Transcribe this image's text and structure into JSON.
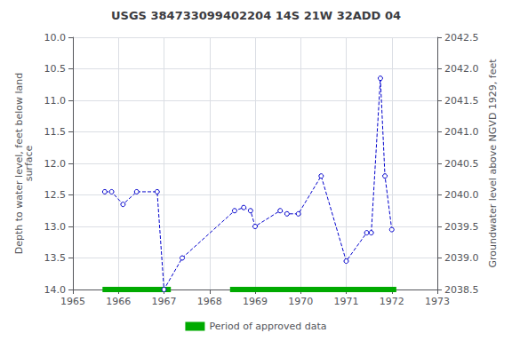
{
  "chart_data": {
    "type": "line",
    "title": "USGS 384733099402204 14S 21W 32ADD 04",
    "ylabel": "Depth to water level, feet below land\nsurface",
    "y2label": "Groundwater level above NGVD 1929, feet",
    "x": [
      1965.7,
      1965.85,
      1966.1,
      1966.4,
      1966.85,
      1967.0,
      1967.4,
      1968.55,
      1968.75,
      1968.9,
      1969.0,
      1969.55,
      1969.7,
      1969.95,
      1970.45,
      1971.0,
      1971.45,
      1971.55,
      1971.75,
      1971.85,
      1972.0
    ],
    "series": [
      {
        "color": "#0000cc",
        "marker": "circle",
        "line_style": "dashed",
        "values": [
          12.45,
          12.45,
          12.65,
          12.45,
          12.45,
          14.0,
          13.5,
          12.75,
          12.7,
          12.75,
          13.0,
          12.75,
          12.8,
          12.8,
          12.2,
          13.55,
          13.1,
          13.1,
          10.65,
          12.2,
          13.05
        ]
      },
      {
        "name": "Period of approved data",
        "type": "segments",
        "color": "#00aa00",
        "y": 14.0,
        "segments": [
          [
            1965.65,
            1967.15
          ],
          [
            1968.45,
            1972.1
          ]
        ]
      }
    ],
    "xlim": [
      1965,
      1973
    ],
    "xticks": [
      1965,
      1966,
      1967,
      1968,
      1969,
      1970,
      1971,
      1972,
      1973
    ],
    "ylim": [
      14.0,
      10.0
    ],
    "yticks": [
      {
        "value": 10.0,
        "label": "10.0"
      },
      {
        "value": 10.5,
        "label": "10.5"
      },
      {
        "value": 11.0,
        "label": "11.0"
      },
      {
        "value": 11.5,
        "label": "11.5"
      },
      {
        "value": 12.0,
        "label": "12.0"
      },
      {
        "value": 12.5,
        "label": "12.5"
      },
      {
        "value": 13.0,
        "label": "13.0"
      },
      {
        "value": 13.5,
        "label": "13.5"
      },
      {
        "value": 14.0,
        "label": "14.0"
      }
    ],
    "y2lim": [
      2038.5,
      2042.5
    ],
    "y2ticks": [
      {
        "value": 2038.5,
        "label": "2038.5"
      },
      {
        "value": 2039.0,
        "label": "2039.0"
      },
      {
        "value": 2039.5,
        "label": "2039.5"
      },
      {
        "value": 2040.0,
        "label": "2040.0"
      },
      {
        "value": 2040.5,
        "label": "2040.5"
      },
      {
        "value": 2041.0,
        "label": "2041.0"
      },
      {
        "value": 2041.5,
        "label": "2041.5"
      },
      {
        "value": 2042.0,
        "label": "2042.0"
      },
      {
        "value": 2042.5,
        "label": "2042.5"
      }
    ],
    "grid": true,
    "legend": "bottom"
  }
}
